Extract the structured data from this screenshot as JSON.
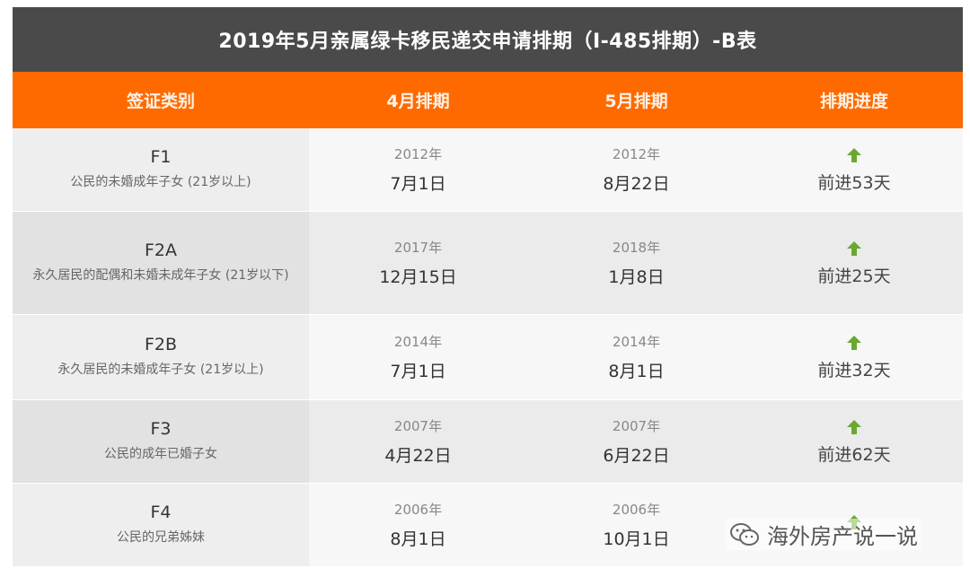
{
  "title": "2019年5月亲属绿卡移民递交申请排期（I-485排期）-B表",
  "headers": {
    "category": "签证类别",
    "april": "4月排期",
    "may": "5月排期",
    "progress": "排期进度"
  },
  "rows": [
    {
      "code": "F1",
      "desc": "公民的未婚成年子女 (21岁以上)",
      "april_year": "2012年",
      "april_date": "7月1日",
      "may_year": "2012年",
      "may_date": "8月22日",
      "progress": "前进53天",
      "arrow_icon": "arrow-up-icon"
    },
    {
      "code": "F2A",
      "desc": "永久居民的配偶和未婚未成年子女 (21岁以下)",
      "april_year": "2017年",
      "april_date": "12月15日",
      "may_year": "2018年",
      "may_date": "1月8日",
      "progress": "前进25天",
      "arrow_icon": "arrow-up-icon"
    },
    {
      "code": "F2B",
      "desc": "永久居民的未婚成年子女 (21岁以上)",
      "april_year": "2014年",
      "april_date": "7月1日",
      "may_year": "2014年",
      "may_date": "8月1日",
      "progress": "前进32天",
      "arrow_icon": "arrow-up-icon"
    },
    {
      "code": "F3",
      "desc": "公民的成年已婚子女",
      "april_year": "2007年",
      "april_date": "4月22日",
      "may_year": "2007年",
      "may_date": "6月22日",
      "progress": "前进62天",
      "arrow_icon": "arrow-up-icon"
    },
    {
      "code": "F4",
      "desc": "公民的兄弟姊妹",
      "april_year": "2006年",
      "april_date": "8月1日",
      "may_year": "2006年",
      "may_date": "10月1日",
      "progress": "",
      "arrow_icon": "arrow-up-icon"
    }
  ],
  "watermark": {
    "text": "海外房产说一说",
    "icon": "wechat-icon"
  },
  "colors": {
    "title_bg": "#4a4a4a",
    "header_bg": "#ff6a00",
    "arrow": "#6aa832"
  }
}
